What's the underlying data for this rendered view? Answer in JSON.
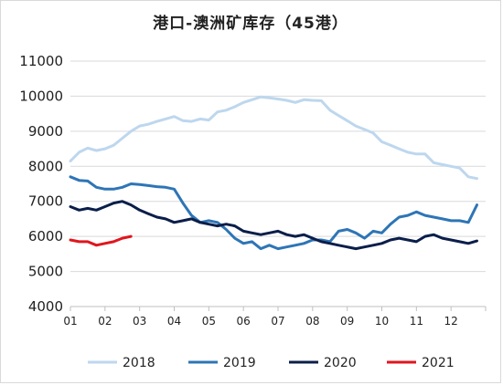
{
  "chart_data": {
    "type": "line",
    "title": "港口-澳洲矿库存（45港）",
    "xlabel": "",
    "ylabel": "",
    "ylim": [
      4000,
      11000
    ],
    "yticks": [
      4000,
      5000,
      6000,
      7000,
      8000,
      9000,
      10000,
      11000
    ],
    "xticks": [
      "01",
      "02",
      "03",
      "04",
      "05",
      "06",
      "07",
      "08",
      "09",
      "10",
      "11",
      "12"
    ],
    "xlim": [
      1,
      13
    ],
    "grid": "horizontal",
    "legend_position": "bottom",
    "series": [
      {
        "name": "2018",
        "color": "#bdd7ee",
        "x": [
          1.0,
          1.25,
          1.5,
          1.75,
          2.0,
          2.25,
          2.5,
          2.75,
          3.0,
          3.25,
          3.5,
          3.75,
          4.0,
          4.25,
          4.5,
          4.75,
          5.0,
          5.25,
          5.5,
          5.75,
          6.0,
          6.25,
          6.5,
          6.75,
          7.0,
          7.25,
          7.5,
          7.75,
          8.0,
          8.25,
          8.5,
          8.75,
          9.0,
          9.25,
          9.5,
          9.75,
          10.0,
          10.25,
          10.5,
          10.75,
          11.0,
          11.25,
          11.5,
          11.75,
          12.0,
          12.25,
          12.5,
          12.75
        ],
        "values": [
          8150,
          8400,
          8520,
          8450,
          8500,
          8600,
          8800,
          9000,
          9150,
          9200,
          9280,
          9350,
          9420,
          9300,
          9280,
          9350,
          9320,
          9550,
          9600,
          9700,
          9820,
          9900,
          9980,
          9950,
          9920,
          9880,
          9820,
          9900,
          9880,
          9870,
          9600,
          9450,
          9300,
          9150,
          9050,
          8950,
          8700,
          8600,
          8500,
          8400,
          8350,
          8350,
          8100,
          8050,
          8000,
          7950,
          7700,
          7650
        ]
      },
      {
        "name": "2019",
        "color": "#2e75b6",
        "x": [
          1.0,
          1.25,
          1.5,
          1.75,
          2.0,
          2.25,
          2.5,
          2.75,
          3.0,
          3.25,
          3.5,
          3.75,
          4.0,
          4.25,
          4.5,
          4.75,
          5.0,
          5.25,
          5.5,
          5.75,
          6.0,
          6.25,
          6.5,
          6.75,
          7.0,
          7.25,
          7.5,
          7.75,
          8.0,
          8.25,
          8.5,
          8.75,
          9.0,
          9.25,
          9.5,
          9.75,
          10.0,
          10.25,
          10.5,
          10.75,
          11.0,
          11.25,
          11.5,
          11.75,
          12.0,
          12.25,
          12.5,
          12.75
        ],
        "values": [
          7700,
          7600,
          7580,
          7400,
          7350,
          7350,
          7400,
          7500,
          7480,
          7450,
          7420,
          7400,
          7350,
          6950,
          6600,
          6400,
          6450,
          6400,
          6200,
          5950,
          5800,
          5850,
          5650,
          5750,
          5650,
          5700,
          5750,
          5800,
          5900,
          5900,
          5850,
          6150,
          6200,
          6100,
          5950,
          6150,
          6100,
          6350,
          6550,
          6600,
          6700,
          6600,
          6550,
          6500,
          6450,
          6450,
          6400,
          6900
        ]
      },
      {
        "name": "2020",
        "color": "#0b1e4a",
        "x": [
          1.0,
          1.25,
          1.5,
          1.75,
          2.0,
          2.25,
          2.5,
          2.75,
          3.0,
          3.25,
          3.5,
          3.75,
          4.0,
          4.25,
          4.5,
          4.75,
          5.0,
          5.25,
          5.5,
          5.75,
          6.0,
          6.25,
          6.5,
          6.75,
          7.0,
          7.25,
          7.5,
          7.75,
          8.0,
          8.25,
          8.5,
          8.75,
          9.0,
          9.25,
          9.5,
          9.75,
          10.0,
          10.25,
          10.5,
          10.75,
          11.0,
          11.25,
          11.5,
          11.75,
          12.0,
          12.25,
          12.5,
          12.75
        ],
        "values": [
          6850,
          6750,
          6800,
          6750,
          6850,
          6950,
          7000,
          6900,
          6750,
          6650,
          6550,
          6500,
          6400,
          6450,
          6500,
          6400,
          6350,
          6300,
          6350,
          6300,
          6150,
          6100,
          6050,
          6100,
          6150,
          6050,
          6000,
          6050,
          5950,
          5850,
          5800,
          5750,
          5700,
          5650,
          5700,
          5750,
          5800,
          5900,
          5950,
          5900,
          5850,
          6000,
          6050,
          5950,
          5900,
          5850,
          5800,
          5870
        ]
      },
      {
        "name": "2021",
        "color": "#e0161e",
        "x": [
          1.0,
          1.25,
          1.5,
          1.75,
          2.0,
          2.25,
          2.5,
          2.75
        ],
        "values": [
          5900,
          5850,
          5850,
          5750,
          5800,
          5850,
          5950,
          6000
        ]
      }
    ]
  }
}
